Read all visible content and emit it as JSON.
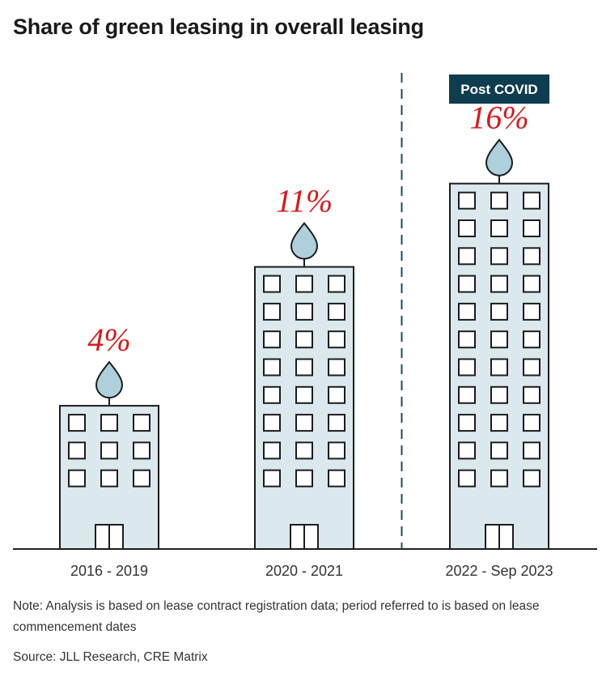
{
  "title": "Share of green leasing in overall leasing",
  "chart_data": {
    "type": "bar",
    "title": "Share of green leasing in overall leasing",
    "categories": [
      "2016 - 2019",
      "2020 - 2021",
      "2022 - Sep 2023"
    ],
    "values": [
      4,
      11,
      16
    ],
    "data_labels": [
      "4%",
      "11%",
      "16%"
    ],
    "unit": "%",
    "xlabel": "",
    "ylabel": "",
    "grid": false,
    "annotation": "Post COVID",
    "divider_before_category": 2
  },
  "note": "Note: Analysis is based on lease contract registration data; period referred to is based on lease commencement dates",
  "source": "Source: JLL Research, CRE Matrix",
  "colors": {
    "building_fill": "#dbe9ee",
    "building_stroke": "#1c1c1c",
    "leaf_fill": "#aecfdc",
    "label": "#d7191c",
    "badge": "#0e3d4f",
    "badge_text": "#ffffff",
    "divider": "#1c4a5c"
  }
}
